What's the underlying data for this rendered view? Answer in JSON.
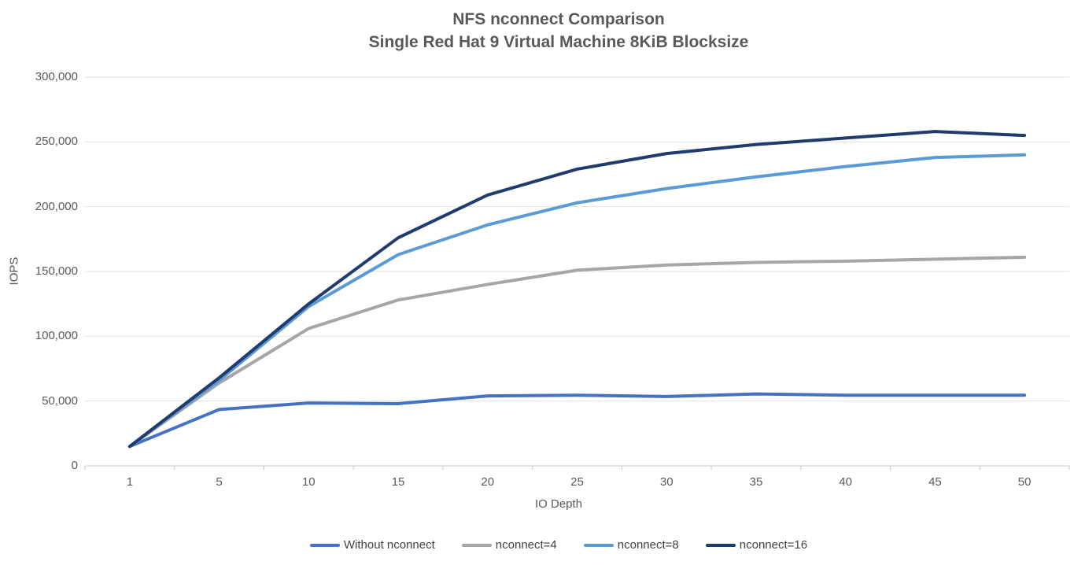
{
  "chart_data": {
    "type": "line",
    "title": "NFS nconnect Comparison",
    "subtitle": "Single Red Hat 9 Virtual Machine 8KiB Blocksize",
    "xlabel": "IO Depth",
    "ylabel": "IOPS",
    "x_categories": [
      "1",
      "5",
      "10",
      "15",
      "20",
      "25",
      "30",
      "35",
      "40",
      "45",
      "50"
    ],
    "ylim": [
      0,
      300000
    ],
    "ytick_interval": 50000,
    "ytick_labels": [
      "0",
      "50,000",
      "100,000",
      "150,000",
      "200,000",
      "250,000",
      "300,000"
    ],
    "grid": "horizontal",
    "legend_position": "bottom",
    "colors": {
      "gridline": "#E2E2E2",
      "axis_line": "#C9C9C9",
      "text": "#595959"
    },
    "series": [
      {
        "name": "Without nconnect",
        "color": "#4472C4",
        "values": [
          15000,
          43500,
          48500,
          48000,
          54000,
          54500,
          53500,
          55500,
          54500,
          54500,
          54500
        ]
      },
      {
        "name": "nconnect=4",
        "color": "#A6A6A6",
        "values": [
          15000,
          64000,
          106000,
          128000,
          140000,
          151000,
          155000,
          157000,
          158000,
          159500,
          161000
        ]
      },
      {
        "name": "nconnect=8",
        "color": "#5B9BD5",
        "values": [
          15000,
          66000,
          123000,
          163000,
          186000,
          203000,
          214000,
          223000,
          231000,
          238000,
          240000
        ]
      },
      {
        "name": "nconnect=16",
        "color": "#203C6E",
        "values": [
          15000,
          68000,
          125000,
          176000,
          209000,
          229000,
          241000,
          248000,
          253000,
          258000,
          255000
        ]
      }
    ]
  }
}
